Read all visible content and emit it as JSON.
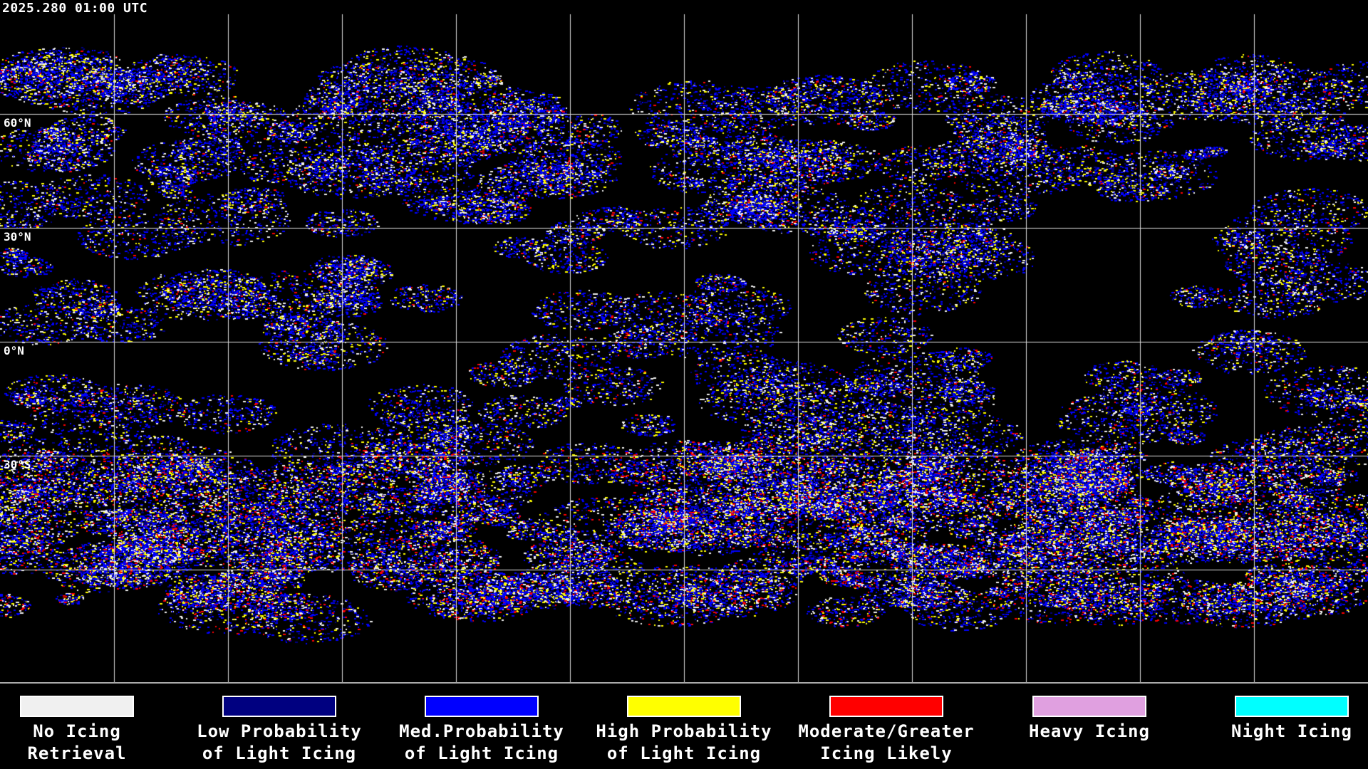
{
  "timestamp": "2025.280 01:00 UTC",
  "latitude_labels": [
    "60°N",
    "30°N",
    "0°N",
    "30°S"
  ],
  "legend": [
    {
      "line1": "No Icing",
      "line2": "Retrieval",
      "color": "#f0f0f0"
    },
    {
      "line1": "Low Probability",
      "line2": "of Light Icing",
      "color": "#000080"
    },
    {
      "line1": "Med.Probability",
      "line2": "of Light Icing",
      "color": "#0000ff"
    },
    {
      "line1": "High Probability",
      "line2": "of Light Icing",
      "color": "#ffff00"
    },
    {
      "line1": "Moderate/Greater",
      "line2": "Icing Likely",
      "color": "#ff0000"
    },
    {
      "line1": "Heavy Icing",
      "line2": "",
      "color": "#e0a0e0"
    },
    {
      "line1": "Night Icing",
      "line2": "",
      "color": "#00ffff"
    }
  ]
}
